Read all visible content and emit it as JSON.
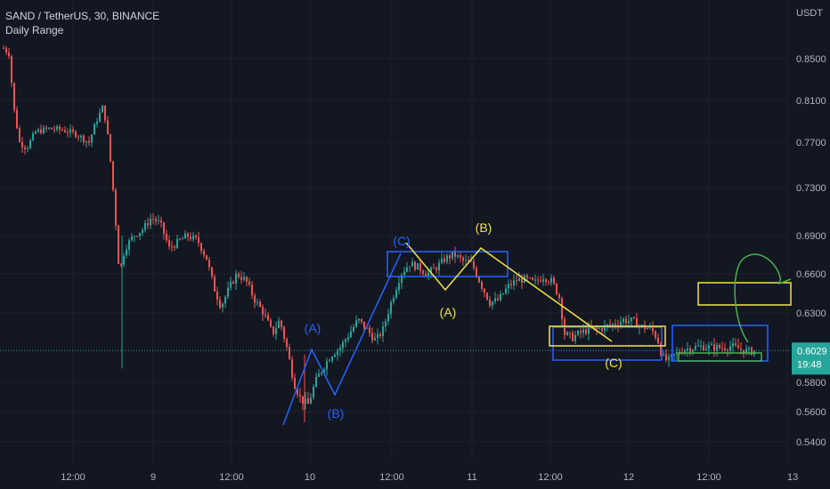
{
  "header": {
    "symbol": "SAND / TetherUS, 30, BINANCE",
    "indicator": "Daily Range"
  },
  "chart_data": {
    "type": "candlestick",
    "currency": "USDT",
    "y_ticks": [
      "0.8500",
      "0.8100",
      "0.7700",
      "0.7300",
      "0.6900",
      "0.6600",
      "0.6300",
      "0.5800",
      "0.5600",
      "0.5400"
    ],
    "y_tick_values": [
      0.85,
      0.81,
      0.77,
      0.73,
      0.69,
      0.66,
      0.63,
      0.58,
      0.56,
      0.54
    ],
    "x_ticks": [
      "12:00",
      "9",
      "12:00",
      "10",
      "12:00",
      "11",
      "12:00",
      "12",
      "12:00",
      "13"
    ],
    "last_price": "0.6029",
    "countdown": "19:48",
    "wave_labels": {
      "blue": [
        "(A)",
        "(B)",
        "(C)"
      ],
      "yellow": [
        "(B)",
        "(A)",
        "(C)"
      ]
    },
    "colors": {
      "up": "#26a69a",
      "down": "#ef5350",
      "blue": "#2962ff",
      "yellow": "#f5e34a",
      "green": "#4caf50",
      "price_line": "#26a69a",
      "background": "#131722"
    }
  }
}
